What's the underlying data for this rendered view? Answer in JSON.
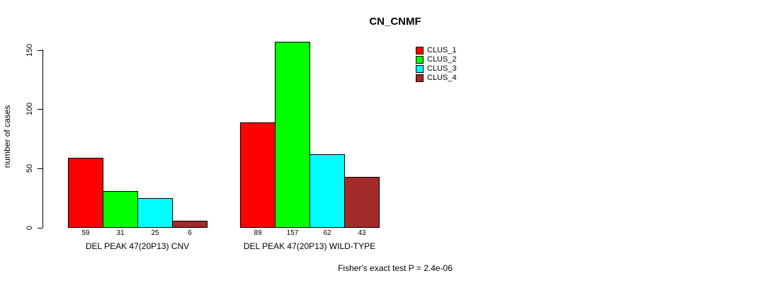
{
  "chart_data": {
    "type": "bar",
    "title": "CN_CNMF",
    "ylabel": "number of cases",
    "xlabel": "",
    "categories": [
      "DEL PEAK 47(20P13) CNV",
      "DEL PEAK 47(20P13) WILD-TYPE"
    ],
    "series": [
      {
        "name": "CLUS_1",
        "color": "#FF0000",
        "values": [
          59,
          89
        ]
      },
      {
        "name": "CLUS_2",
        "color": "#00FF00",
        "values": [
          31,
          157
        ]
      },
      {
        "name": "CLUS_3",
        "color": "#00FFFF",
        "values": [
          25,
          62
        ]
      },
      {
        "name": "CLUS_4",
        "color": "#A52A2A",
        "values": [
          6,
          43
        ]
      }
    ],
    "yticks": [
      0,
      50,
      100,
      150
    ],
    "ylim": [
      0,
      160
    ],
    "grid": false,
    "legend_position": "top-right",
    "bar_value_labels": true,
    "annotation": "Fisher's exact test P = 2.4e-06"
  },
  "legend": {
    "items": [
      {
        "label": "CLUS_1",
        "color": "#FF0000"
      },
      {
        "label": "CLUS_2",
        "color": "#00FF00"
      },
      {
        "label": "CLUS_3",
        "color": "#00FFFF"
      },
      {
        "label": "CLUS_4",
        "color": "#A52A2A"
      }
    ]
  }
}
